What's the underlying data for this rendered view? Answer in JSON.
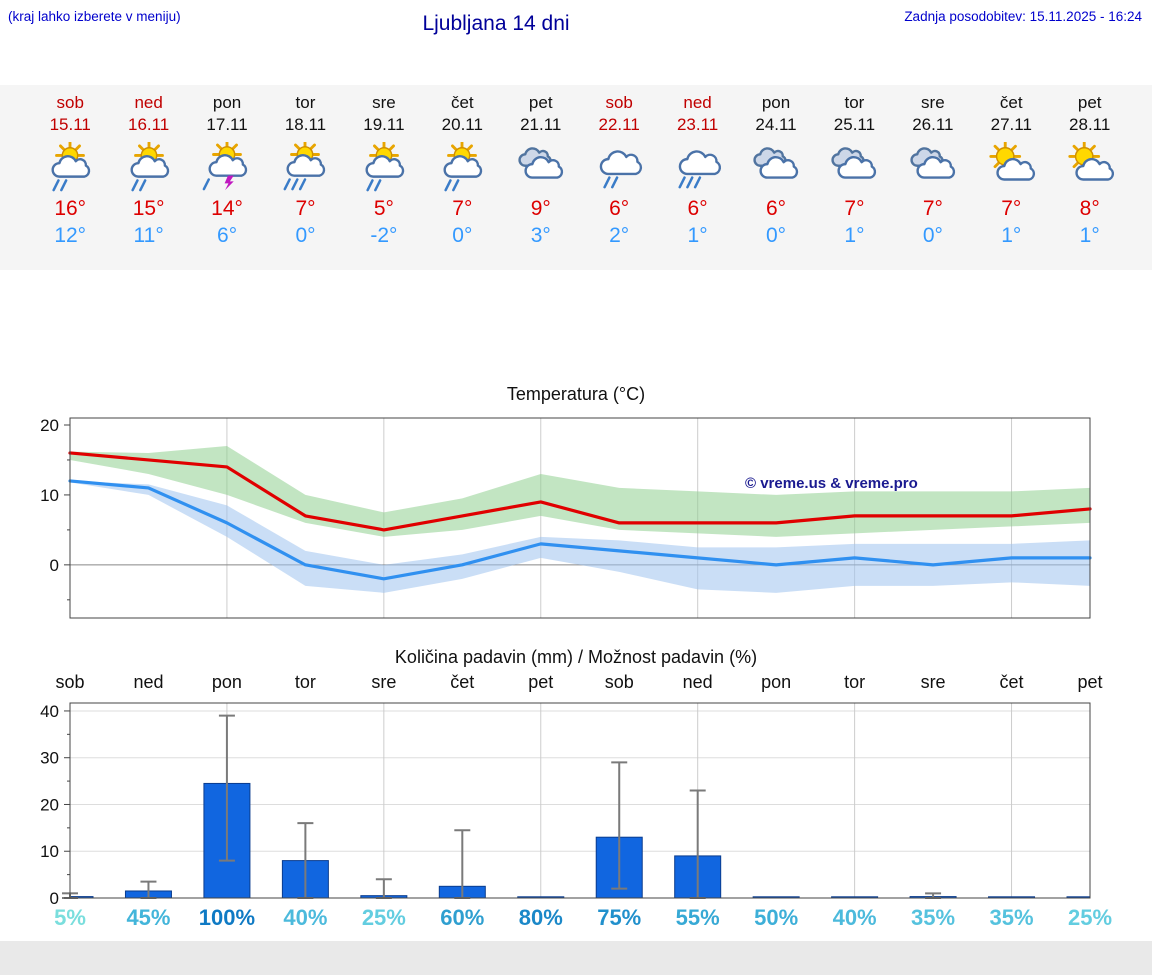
{
  "header": {
    "left_note": "(kraj lahko izberete v meniju)",
    "title": "Ljubljana 14 dni",
    "updated": "Zadnja posodobitev: 15.11.2025 - 16:24"
  },
  "colors": {
    "accent_blue": "#0000cc",
    "title_blue": "#000099",
    "high_temp_red": "#dd0000",
    "low_temp_blue": "#3399ff",
    "weekend_red": "#c00000",
    "bar_blue": "#1166e0",
    "strip_bg": "#f5f5f5",
    "footer_bg": "#e9e9e9"
  },
  "forecast": {
    "days": [
      {
        "name": "sob",
        "date": "15.11",
        "weekend": true,
        "icon": "sun-cloud-rain",
        "high": "16°",
        "low": "12°"
      },
      {
        "name": "ned",
        "date": "16.11",
        "weekend": true,
        "icon": "sun-cloud-rain",
        "high": "15°",
        "low": "11°"
      },
      {
        "name": "pon",
        "date": "17.11",
        "weekend": false,
        "icon": "sun-cloud-storm",
        "high": "14°",
        "low": "6°"
      },
      {
        "name": "tor",
        "date": "18.11",
        "weekend": false,
        "icon": "sun-cloud-heavy-rain",
        "high": "7°",
        "low": "0°"
      },
      {
        "name": "sre",
        "date": "19.11",
        "weekend": false,
        "icon": "sun-cloud-rain",
        "high": "5°",
        "low": "-2°"
      },
      {
        "name": "čet",
        "date": "20.11",
        "weekend": false,
        "icon": "sun-cloud-rain",
        "high": "7°",
        "low": "0°"
      },
      {
        "name": "pet",
        "date": "21.11",
        "weekend": false,
        "icon": "clouds",
        "high": "9°",
        "low": "3°"
      },
      {
        "name": "sob",
        "date": "22.11",
        "weekend": true,
        "icon": "cloud-rain",
        "high": "6°",
        "low": "2°"
      },
      {
        "name": "ned",
        "date": "23.11",
        "weekend": true,
        "icon": "cloud-heavy-rain",
        "high": "6°",
        "low": "1°"
      },
      {
        "name": "pon",
        "date": "24.11",
        "weekend": false,
        "icon": "clouds",
        "high": "6°",
        "low": "0°"
      },
      {
        "name": "tor",
        "date": "25.11",
        "weekend": false,
        "icon": "clouds",
        "high": "7°",
        "low": "1°"
      },
      {
        "name": "sre",
        "date": "26.11",
        "weekend": false,
        "icon": "clouds",
        "high": "7°",
        "low": "0°"
      },
      {
        "name": "čet",
        "date": "27.11",
        "weekend": false,
        "icon": "sun-cloud",
        "high": "7°",
        "low": "1°"
      },
      {
        "name": "pet",
        "date": "28.11",
        "weekend": false,
        "icon": "sun-cloud",
        "high": "8°",
        "low": "1°"
      }
    ]
  },
  "chart_data": [
    {
      "type": "line",
      "title": "Temperatura (°C)",
      "x_count": 14,
      "grid_x": [
        2,
        4,
        6,
        8,
        10,
        12
      ],
      "ylim": [
        -7.6,
        21
      ],
      "yticks": [
        0,
        10,
        20
      ],
      "yticks_minor": [
        -5,
        5,
        15
      ],
      "annotation": "© vreme.us & vreme.pro",
      "series": [
        {
          "name": "max-temp",
          "color": "#e00000",
          "values": [
            16,
            15,
            14,
            7,
            5,
            7,
            9,
            6,
            6,
            6,
            7,
            7,
            7,
            8
          ]
        },
        {
          "name": "min-temp",
          "color": "#3090f0",
          "values": [
            12,
            11,
            6,
            0,
            -2,
            0,
            3,
            2,
            1,
            0,
            1,
            0,
            1,
            1
          ]
        }
      ],
      "bands": [
        {
          "name": "max-range",
          "color": "#8fd08f",
          "upper": [
            16.2,
            16,
            17,
            10,
            7.5,
            9.5,
            13,
            11,
            10.5,
            10,
            10.5,
            10.5,
            10.5,
            11
          ],
          "lower": [
            15,
            13,
            10,
            6,
            4,
            5,
            7,
            5,
            4.5,
            4,
            4.5,
            5,
            5.5,
            6
          ]
        },
        {
          "name": "min-range",
          "color": "#9ec2ee",
          "upper": [
            12,
            11.5,
            8.5,
            2,
            0,
            1.5,
            4,
            3.5,
            2.5,
            2.5,
            3,
            3,
            3,
            3.5
          ],
          "lower": [
            11.8,
            10,
            4,
            -3,
            -4,
            -2,
            1,
            -1,
            -3.5,
            -4,
            -3,
            -3,
            -2.5,
            -3
          ]
        }
      ]
    },
    {
      "type": "bar",
      "title": "Količina padavin (mm) / Možnost padavin (%)",
      "categories": [
        "sob",
        "ned",
        "pon",
        "tor",
        "sre",
        "čet",
        "pet",
        "sob",
        "ned",
        "pon",
        "tor",
        "sre",
        "čet",
        "pet"
      ],
      "values": [
        0.3,
        1.5,
        24.5,
        8,
        0.5,
        2.5,
        0,
        13,
        9,
        0,
        0,
        0.3,
        0,
        0
      ],
      "whisker_low": [
        0,
        0,
        8,
        0,
        0,
        0,
        0,
        2,
        0,
        0,
        0,
        0,
        0,
        0
      ],
      "whisker_high": [
        1,
        3.5,
        39,
        16,
        4,
        14.5,
        0,
        29,
        23,
        0,
        0,
        1,
        0,
        0
      ],
      "bar_color": "#1166e0",
      "ylim": [
        0,
        41.7
      ],
      "yticks": [
        0,
        10,
        20,
        30,
        40
      ],
      "yticks_minor": [
        5,
        15,
        25,
        35
      ],
      "grid_x": [
        2,
        4,
        6,
        8,
        10,
        12
      ],
      "probabilities": [
        "5%",
        "45%",
        "100%",
        "40%",
        "25%",
        "60%",
        "80%",
        "75%",
        "55%",
        "50%",
        "40%",
        "35%",
        "35%",
        "25%"
      ],
      "prob_colors": [
        "#7adedd",
        "#43b5da",
        "#0f7ac4",
        "#4cbadc",
        "#63cde0",
        "#2f9fd0",
        "#1b88c8",
        "#2190cc",
        "#37a9d5",
        "#3dafd8",
        "#4cbadc",
        "#55c2de",
        "#55c2de",
        "#63cde0"
      ]
    }
  ]
}
